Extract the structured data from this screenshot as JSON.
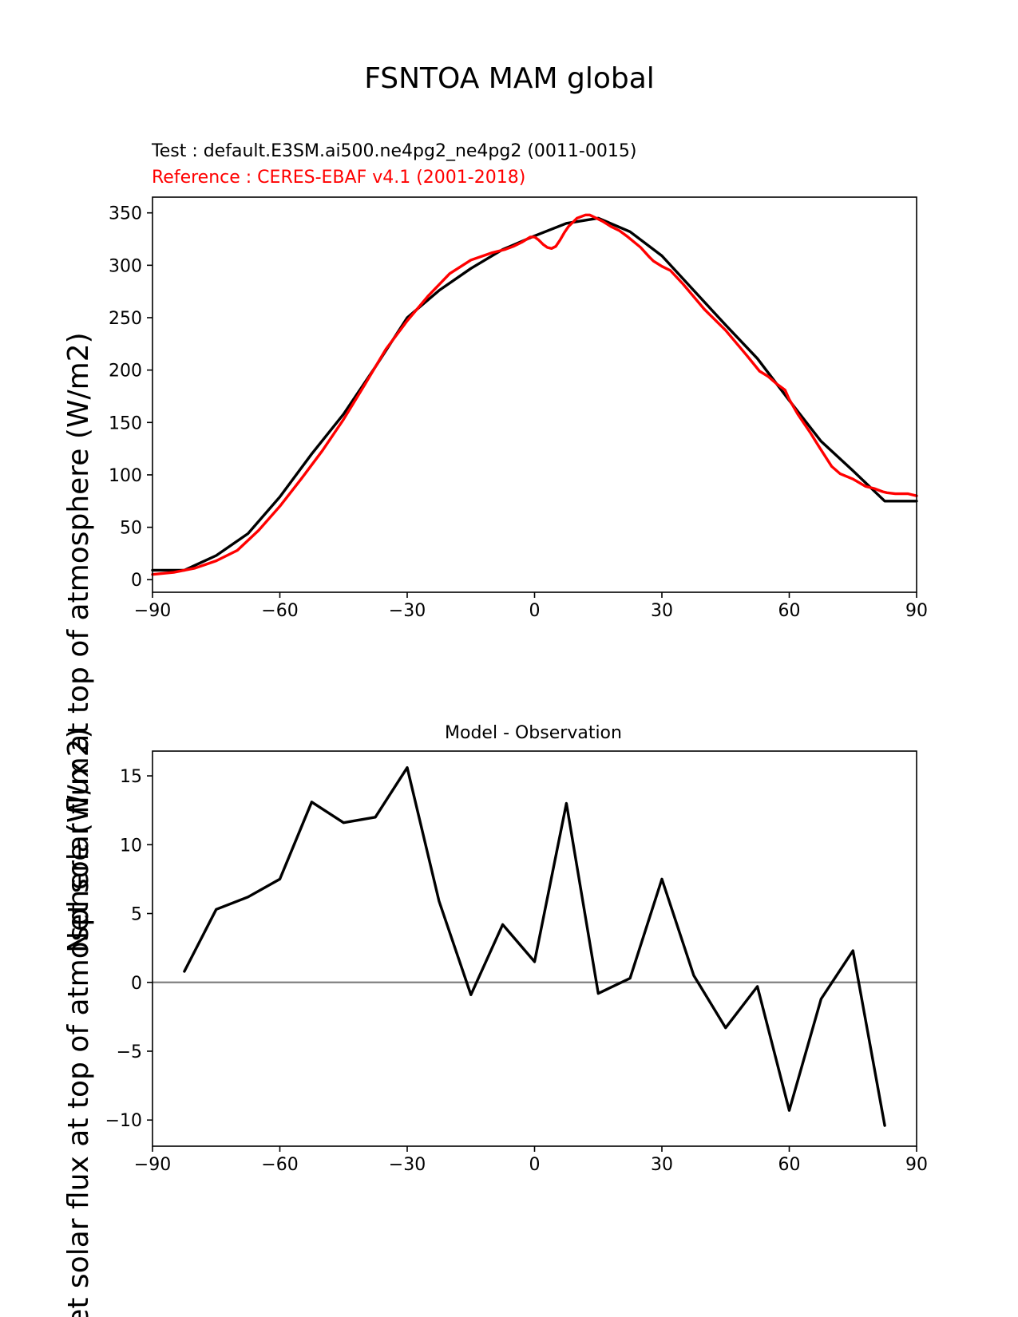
{
  "figure": {
    "title": "FSNTOA MAM global",
    "ylabel": "Net solar flux at top of atmosphere (W/m2)"
  },
  "chart_data": [
    {
      "type": "line",
      "test_label": "Test : default.E3SM.ai500.ne4pg2_ne4pg2 (0011-0015)",
      "reference_label": "Reference : CERES-EBAF v4.1 (2001-2018)",
      "xlim": [
        -90,
        90
      ],
      "ylim": [
        -12,
        365
      ],
      "xticks": [
        "−90",
        "−60",
        "−30",
        "0",
        "30",
        "60",
        "90"
      ],
      "xtick_values": [
        -90,
        -60,
        -30,
        0,
        30,
        60,
        90
      ],
      "yticks": [
        "0",
        "50",
        "100",
        "150",
        "200",
        "250",
        "300",
        "350"
      ],
      "ytick_values": [
        0,
        50,
        100,
        150,
        200,
        250,
        300,
        350
      ],
      "grid": false,
      "series": [
        {
          "color": "#000000",
          "x": [
            -90,
            -82.5,
            -75,
            -67.5,
            -60,
            -52.5,
            -45,
            -37.5,
            -30,
            -22.5,
            -15,
            -7.5,
            0,
            7.5,
            15,
            22.5,
            30,
            37.5,
            45,
            52.5,
            60,
            67.5,
            75,
            82.5,
            90
          ],
          "y": [
            9,
            9,
            23,
            44,
            79,
            120,
            158,
            203,
            250,
            276,
            297,
            315,
            328,
            340,
            345,
            332,
            309,
            276,
            243,
            211,
            171,
            132,
            104,
            75,
            75
          ]
        },
        {
          "color": "#ff0000",
          "x": [
            -90,
            -85,
            -80,
            -75,
            -70,
            -65,
            -60,
            -55,
            -50,
            -45,
            -40,
            -35,
            -30,
            -25,
            -20,
            -15,
            -10,
            -7,
            -5,
            -3,
            -1,
            0,
            1,
            2,
            3,
            4,
            5,
            6,
            7,
            8,
            10,
            12,
            13,
            14,
            16,
            18,
            20,
            22,
            25,
            27,
            28,
            30,
            32,
            35,
            40,
            45,
            50,
            53,
            55,
            57,
            59,
            60,
            62,
            65,
            67,
            70,
            72,
            75,
            78,
            80,
            82,
            83,
            85,
            88,
            90
          ],
          "y": [
            5,
            7,
            11,
            18,
            28,
            47,
            70,
            96,
            123,
            153,
            186,
            220,
            247,
            271,
            292,
            305,
            312,
            315,
            318,
            322,
            327,
            327,
            324,
            320,
            317,
            316,
            318,
            324,
            331,
            337,
            345,
            348,
            348,
            346,
            342,
            337,
            333,
            327,
            317,
            308,
            304,
            299,
            295,
            282,
            258,
            238,
            214,
            199,
            194,
            187,
            181,
            172,
            158,
            140,
            127,
            108,
            101,
            96,
            89,
            87,
            84,
            83,
            82,
            82,
            80
          ]
        }
      ]
    },
    {
      "type": "line",
      "title": "Model - Observation",
      "xlim": [
        -90,
        90
      ],
      "ylim": [
        -11.9,
        16.8
      ],
      "xticks": [
        "−90",
        "−60",
        "−30",
        "0",
        "30",
        "60",
        "90"
      ],
      "xtick_values": [
        -90,
        -60,
        -30,
        0,
        30,
        60,
        90
      ],
      "yticks": [
        "−10",
        "−5",
        "0",
        "5",
        "10",
        "15"
      ],
      "ytick_values": [
        -10,
        -5,
        0,
        5,
        10,
        15
      ],
      "grid": false,
      "zero_line_color": "#808080",
      "series": [
        {
          "color": "#000000",
          "x": [
            -82.5,
            -75,
            -67.5,
            -60,
            -52.5,
            -45,
            -37.5,
            -30,
            -22.5,
            -15,
            -7.5,
            0,
            7.5,
            15,
            22.5,
            30,
            37.5,
            45,
            52.5,
            60,
            67.5,
            75,
            82.5
          ],
          "y": [
            0.8,
            5.3,
            6.2,
            7.5,
            13.1,
            11.6,
            12.0,
            15.6,
            5.9,
            -0.9,
            4.2,
            1.5,
            13.0,
            -0.8,
            0.3,
            7.5,
            0.5,
            -3.3,
            -0.3,
            -9.3,
            -1.2,
            2.3,
            -10.4
          ]
        }
      ]
    }
  ]
}
